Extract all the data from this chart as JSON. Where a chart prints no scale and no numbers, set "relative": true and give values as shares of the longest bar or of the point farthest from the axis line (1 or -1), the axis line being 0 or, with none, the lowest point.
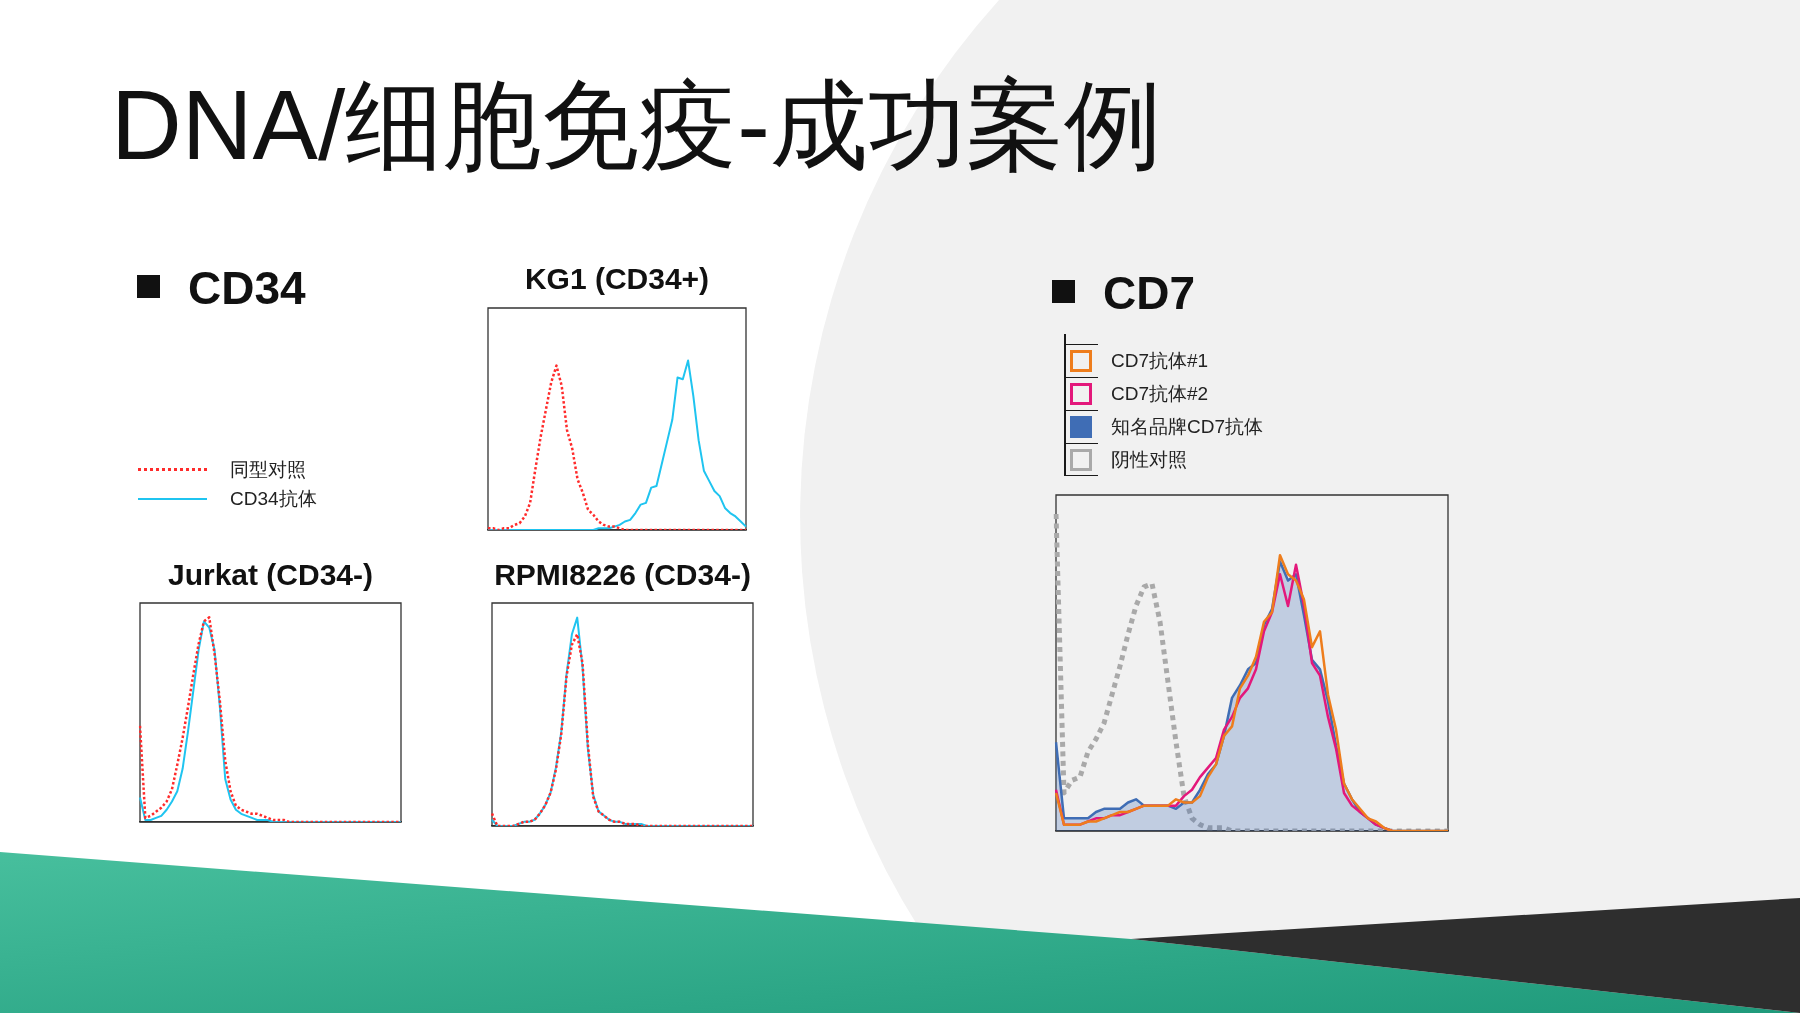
{
  "chart_data": [
    {
      "type": "other",
      "title": "DNA/细胞免疫-成功案例"
    },
    {
      "type": "other",
      "title": "CD34"
    },
    {
      "type": "line",
      "title": "KG1 (CD34+)",
      "relative": true,
      "tick_labels": false,
      "legend": "left",
      "marker": "none",
      "categories": [
        null,
        null,
        null,
        null,
        null,
        null,
        null,
        null,
        null,
        null,
        null,
        null,
        null,
        null,
        null,
        null,
        null,
        null,
        null,
        null,
        null,
        null,
        null,
        null,
        null,
        null,
        null,
        null,
        null,
        null,
        null,
        null,
        null,
        null,
        null,
        null,
        null,
        null,
        null,
        null,
        null,
        null,
        null,
        null,
        null,
        null,
        null,
        null,
        null,
        null
      ],
      "series": [
        {
          "name": "同型对照",
          "color": "#ff2b2b",
          "line_style": "dotted",
          "values": [
            0.01,
            0.01,
            0,
            0.01,
            0.01,
            0.03,
            0.04,
            0.08,
            0.16,
            0.36,
            0.55,
            0.71,
            0.87,
            0.97,
            0.85,
            0.59,
            0.48,
            0.3,
            0.22,
            0.12,
            0.09,
            0.05,
            0.03,
            0.02,
            0.02,
            0.01,
            0,
            0,
            0,
            0,
            0,
            0,
            0,
            0,
            0,
            0,
            0,
            0,
            0,
            0,
            0,
            0,
            0,
            0,
            0,
            0,
            0,
            0,
            0,
            0
          ]
        },
        {
          "name": "CD34抗体",
          "color": "#1fc4f0",
          "values": [
            0,
            0,
            0,
            0,
            0,
            0,
            0,
            0,
            0,
            0,
            0,
            0,
            0,
            0,
            0,
            0,
            0,
            0,
            0,
            0,
            0,
            0.01,
            0.01,
            0.01,
            0.02,
            0.03,
            0.05,
            0.06,
            0.1,
            0.15,
            0.16,
            0.25,
            0.26,
            0.39,
            0.52,
            0.65,
            0.9,
            0.89,
            1,
            0.79,
            0.53,
            0.35,
            0.29,
            0.23,
            0.2,
            0.13,
            0.1,
            0.08,
            0.05,
            0.02
          ]
        }
      ]
    },
    {
      "type": "line",
      "title": "Jurkat (CD34-)",
      "relative": true,
      "tick_labels": false,
      "marker": "none",
      "categories": [
        null,
        null,
        null,
        null,
        null,
        null,
        null,
        null,
        null,
        null,
        null,
        null,
        null,
        null,
        null,
        null,
        null,
        null,
        null,
        null,
        null,
        null,
        null,
        null,
        null,
        null,
        null,
        null,
        null,
        null,
        null,
        null,
        null,
        null,
        null,
        null,
        null,
        null,
        null,
        null,
        null,
        null,
        null,
        null,
        null,
        null,
        null,
        null,
        null,
        null
      ],
      "series": [
        {
          "color": "#ff2b2b",
          "line_style": "dotted",
          "values": [
            0.47,
            0.02,
            0.03,
            0.05,
            0.07,
            0.1,
            0.16,
            0.28,
            0.41,
            0.56,
            0.72,
            0.87,
            0.98,
            1,
            0.82,
            0.59,
            0.3,
            0.15,
            0.08,
            0.06,
            0.05,
            0.04,
            0.04,
            0.03,
            0.02,
            0.01,
            0.01,
            0.01,
            0,
            0,
            0,
            0,
            0,
            0,
            0,
            0,
            0,
            0,
            0,
            0,
            0,
            0,
            0,
            0,
            0,
            0,
            0,
            0,
            0,
            0
          ]
        },
        {
          "color": "#1fc4f0",
          "values": [
            0.12,
            0.01,
            0.01,
            0.02,
            0.03,
            0.06,
            0.1,
            0.15,
            0.26,
            0.44,
            0.64,
            0.84,
            0.98,
            0.95,
            0.84,
            0.56,
            0.21,
            0.11,
            0.06,
            0.04,
            0.03,
            0.02,
            0.01,
            0.01,
            0.01,
            0,
            0,
            0,
            0,
            0,
            0,
            0,
            0,
            0,
            0,
            0,
            0,
            0,
            0,
            0,
            0,
            0,
            0,
            0,
            0,
            0,
            0,
            0,
            0,
            0
          ]
        }
      ]
    },
    {
      "type": "line",
      "title": "RPMI8226 (CD34-)",
      "relative": true,
      "tick_labels": false,
      "marker": "none",
      "categories": [
        null,
        null,
        null,
        null,
        null,
        null,
        null,
        null,
        null,
        null,
        null,
        null,
        null,
        null,
        null,
        null,
        null,
        null,
        null,
        null,
        null,
        null,
        null,
        null,
        null,
        null,
        null,
        null,
        null,
        null,
        null,
        null,
        null,
        null,
        null,
        null,
        null,
        null,
        null,
        null,
        null,
        null,
        null,
        null,
        null,
        null,
        null,
        null,
        null,
        null
      ],
      "series": [
        {
          "color": "#ff2b2b",
          "line_style": "dotted",
          "values": [
            0.06,
            0,
            0,
            0,
            0,
            0.01,
            0.02,
            0.02,
            0.03,
            0.06,
            0.1,
            0.16,
            0.27,
            0.44,
            0.72,
            0.87,
            0.92,
            0.78,
            0.39,
            0.14,
            0.07,
            0.05,
            0.03,
            0.02,
            0.02,
            0.01,
            0.01,
            0.01,
            0,
            0,
            0,
            0,
            0,
            0,
            0,
            0,
            0,
            0,
            0,
            0,
            0,
            0,
            0,
            0,
            0,
            0,
            0,
            0,
            0,
            0
          ]
        },
        {
          "color": "#1fc4f0",
          "values": [
            0.03,
            0,
            0,
            0,
            0,
            0.01,
            0.02,
            0.02,
            0.03,
            0.06,
            0.1,
            0.16,
            0.28,
            0.45,
            0.73,
            0.92,
            1,
            0.76,
            0.37,
            0.15,
            0.07,
            0.05,
            0.03,
            0.02,
            0.02,
            0.01,
            0.01,
            0.01,
            0.01,
            0,
            0,
            0,
            0,
            0,
            0,
            0,
            0,
            0,
            0,
            0,
            0,
            0,
            0,
            0,
            0,
            0,
            0,
            0,
            0,
            0
          ]
        }
      ]
    },
    {
      "type": "area",
      "title": "CD7",
      "relative": true,
      "tick_labels": false,
      "legend": "top left",
      "marker": "none",
      "categories": [
        null,
        null,
        null,
        null,
        null,
        null,
        null,
        null,
        null,
        null,
        null,
        null,
        null,
        null,
        null,
        null,
        null,
        null,
        null,
        null,
        null,
        null,
        null,
        null,
        null,
        null,
        null,
        null,
        null,
        null,
        null,
        null,
        null,
        null,
        null,
        null,
        null,
        null,
        null,
        null,
        null,
        null,
        null,
        null,
        null,
        null,
        null,
        null,
        null,
        null
      ],
      "series": [
        {
          "name": "CD7抗体#1",
          "type": "line",
          "color": "#ee7d1c",
          "values": [
            0.12,
            0.02,
            0.02,
            0.02,
            0.03,
            0.03,
            0.04,
            0.05,
            0.06,
            0.06,
            0.07,
            0.08,
            0.08,
            0.08,
            0.08,
            0.1,
            0.09,
            0.09,
            0.11,
            0.17,
            0.21,
            0.3,
            0.33,
            0.45,
            0.49,
            0.55,
            0.66,
            0.69,
            0.87,
            0.81,
            0.79,
            0.73,
            0.58,
            0.63,
            0.43,
            0.32,
            0.15,
            0.1,
            0.07,
            0.04,
            0.03,
            0.01,
            0,
            0,
            0,
            0,
            0,
            0,
            0,
            0
          ]
        },
        {
          "name": "CD7抗体#2",
          "type": "line",
          "color": "#e3187b",
          "values": [
            0.13,
            0.02,
            0.02,
            0.02,
            0.03,
            0.04,
            0.04,
            0.05,
            0.05,
            0.06,
            0.07,
            0.08,
            0.08,
            0.08,
            0.08,
            0.08,
            0.11,
            0.13,
            0.17,
            0.2,
            0.23,
            0.32,
            0.36,
            0.42,
            0.45,
            0.51,
            0.63,
            0.69,
            0.81,
            0.71,
            0.84,
            0.71,
            0.53,
            0.49,
            0.36,
            0.26,
            0.12,
            0.08,
            0.06,
            0.04,
            0.02,
            0.01,
            0,
            null,
            null,
            null,
            null,
            null,
            null,
            null
          ]
        },
        {
          "name": "知名品牌CD7抗体",
          "type": "area",
          "color": "#3f6db5",
          "values": [
            0.28,
            0.04,
            0.04,
            0.04,
            0.04,
            0.06,
            0.07,
            0.07,
            0.07,
            0.09,
            0.1,
            0.08,
            0.08,
            0.08,
            0.08,
            0.07,
            0.09,
            0.09,
            0.13,
            0.18,
            0.21,
            0.3,
            0.42,
            0.46,
            0.51,
            0.53,
            0.65,
            0.7,
            0.85,
            0.79,
            0.81,
            0.68,
            0.54,
            0.51,
            0.41,
            0.27,
            0.15,
            0.1,
            0.06,
            0.04,
            0.02,
            0.01,
            0,
            0,
            0,
            0,
            0,
            0,
            0,
            0
          ]
        },
        {
          "name": "阴性对照",
          "type": "line",
          "color": "#a9a9a9",
          "line_style": "dotted",
          "values": [
            1,
            0.12,
            0.16,
            0.17,
            0.25,
            0.29,
            0.34,
            0.43,
            0.52,
            0.62,
            0.71,
            0.77,
            0.78,
            0.66,
            0.47,
            0.28,
            0.11,
            0.04,
            0.02,
            0.01,
            0.01,
            0.01,
            0,
            0,
            0,
            0,
            0,
            0,
            0,
            0,
            0,
            0,
            0,
            0,
            0,
            0,
            0,
            0,
            0,
            0,
            0,
            0,
            0,
            0,
            0,
            0,
            0,
            0,
            0,
            0
          ]
        }
      ]
    }
  ]
}
